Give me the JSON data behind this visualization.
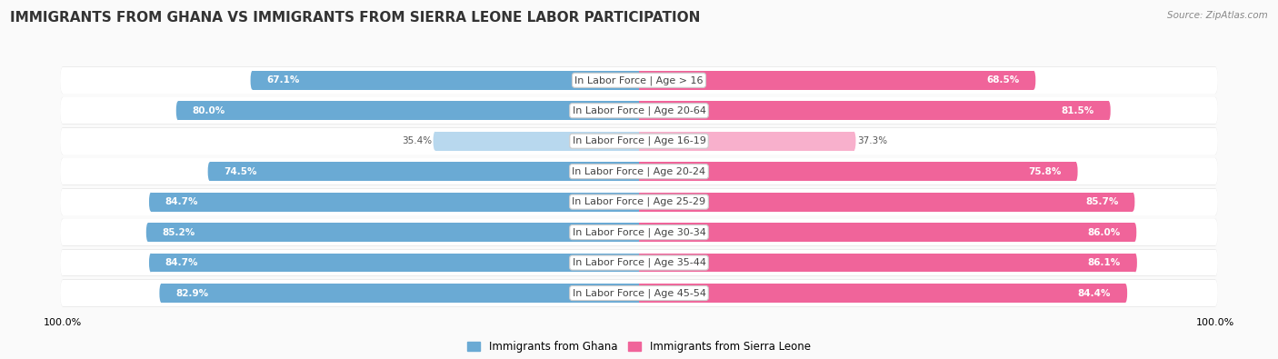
{
  "title": "IMMIGRANTS FROM GHANA VS IMMIGRANTS FROM SIERRA LEONE LABOR PARTICIPATION",
  "source": "Source: ZipAtlas.com",
  "categories": [
    "In Labor Force | Age > 16",
    "In Labor Force | Age 20-64",
    "In Labor Force | Age 16-19",
    "In Labor Force | Age 20-24",
    "In Labor Force | Age 25-29",
    "In Labor Force | Age 30-34",
    "In Labor Force | Age 35-44",
    "In Labor Force | Age 45-54"
  ],
  "ghana_values": [
    67.1,
    80.0,
    35.4,
    74.5,
    84.7,
    85.2,
    84.7,
    82.9
  ],
  "sierra_values": [
    68.5,
    81.5,
    37.3,
    75.8,
    85.7,
    86.0,
    86.1,
    84.4
  ],
  "ghana_color_dark": "#6AAAD4",
  "ghana_color_light": "#B8D8EE",
  "sierra_color_dark": "#F0649A",
  "sierra_color_light": "#F8B0CC",
  "label_ghana": "Immigrants from Ghana",
  "label_sierra": "Immigrants from Sierra Leone",
  "bar_height": 0.62,
  "row_bg_color": "#EBEBEB",
  "fig_bg_color": "#FAFAFA",
  "max_value": 100.0,
  "title_fontsize": 11,
  "cat_fontsize": 8,
  "value_fontsize": 7.5,
  "axis_label_fontsize": 8,
  "low_value_threshold": 50
}
